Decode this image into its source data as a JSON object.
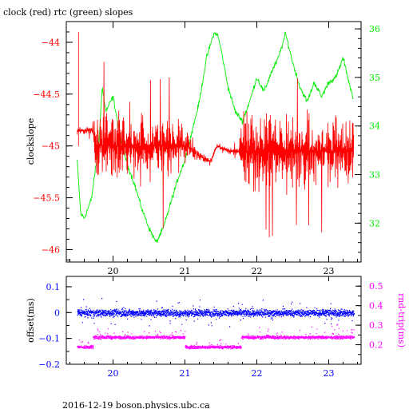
{
  "title": "clock (red) rtc (green) slopes",
  "footer": "2016-12-19 boson.physics.ubc.ca",
  "colors": {
    "red": "#ff0000",
    "green": "#00ee00",
    "blue": "#0000ff",
    "magenta": "#ff00ff",
    "axis": "#000000"
  },
  "chart_data": [
    {
      "type": "line",
      "xlim": [
        19.35,
        23.45
      ],
      "x_ticks": [
        "20",
        "21",
        "22",
        "23"
      ],
      "ylabel": "clockslope",
      "ylim": [
        -46.12,
        -43.8
      ],
      "y_ticks": [
        "-44",
        "-44.5",
        "-45",
        "-45.5",
        "-46"
      ],
      "y2lim": [
        31.2,
        36.15
      ],
      "y2_ticks": [
        "32",
        "33",
        "34",
        "35",
        "36"
      ],
      "series": [
        {
          "axis": "left",
          "color": "#ff0000",
          "noisy": true,
          "x": [
            19.5,
            19.6,
            19.72,
            19.75,
            20.0,
            20.3,
            20.6,
            20.9,
            21.05,
            21.2,
            21.35,
            21.45,
            21.6,
            21.75,
            21.8,
            22.0,
            22.3,
            22.6,
            22.9,
            23.1,
            23.35
          ],
          "y": [
            -44.85,
            -44.85,
            -44.85,
            -45.0,
            -45.0,
            -45.0,
            -45.0,
            -45.0,
            -45.0,
            -45.1,
            -45.15,
            -45.0,
            -45.05,
            -45.05,
            -45.05,
            -45.05,
            -45.05,
            -45.05,
            -45.05,
            -45.05,
            -45.05
          ],
          "noise": [
            0.05,
            0.05,
            0.05,
            0.5,
            0.5,
            0.5,
            0.45,
            0.45,
            0.2,
            0.05,
            0.05,
            0.05,
            0.05,
            0.05,
            0.5,
            0.55,
            0.5,
            0.5,
            0.45,
            0.45,
            0.45
          ]
        },
        {
          "axis": "right",
          "color": "#00ee00",
          "noisy": false,
          "x": [
            19.5,
            19.55,
            19.6,
            19.7,
            19.8,
            19.85,
            19.9,
            20.0,
            20.1,
            20.2,
            20.3,
            20.4,
            20.5,
            20.6,
            20.7,
            20.8,
            20.9,
            21.0,
            21.1,
            21.2,
            21.3,
            21.4,
            21.45,
            21.5,
            21.6,
            21.7,
            21.8,
            21.9,
            22.0,
            22.1,
            22.2,
            22.3,
            22.4,
            22.5,
            22.6,
            22.7,
            22.8,
            22.9,
            23.0,
            23.1,
            23.2,
            23.3,
            23.35
          ],
          "y": [
            33.3,
            32.2,
            32.1,
            32.5,
            33.6,
            34.8,
            34.3,
            34.6,
            33.8,
            33.2,
            32.8,
            32.3,
            31.9,
            31.6,
            31.9,
            32.4,
            32.9,
            33.3,
            33.9,
            34.5,
            35.4,
            35.9,
            35.9,
            35.6,
            34.8,
            34.3,
            34.1,
            34.5,
            35.0,
            34.7,
            35.1,
            35.4,
            35.9,
            35.3,
            34.8,
            34.5,
            34.9,
            34.6,
            34.9,
            35.0,
            35.4,
            34.8,
            34.5
          ]
        }
      ]
    },
    {
      "type": "scatter",
      "xlim": [
        19.35,
        23.45
      ],
      "x_ticks": [
        "20",
        "21",
        "22",
        "23"
      ],
      "ylabel": "offset(ms)",
      "ylim": [
        -0.2,
        0.14
      ],
      "y_ticks": [
        "0.1",
        "0",
        "-0.1",
        "-0.2"
      ],
      "y2label": "rnd-trip(ms)",
      "y2lim": [
        0.1,
        0.55
      ],
      "y2_ticks": [
        "0.2",
        "0.3",
        "0.4",
        "0.5"
      ],
      "series": [
        {
          "axis": "left",
          "color": "#0000ff",
          "x": [
            19.5,
            23.35
          ],
          "y": [
            0.0,
            0.0
          ],
          "spread": 0.02,
          "outlier": 0.08
        },
        {
          "axis": "right",
          "color": "#ff00ff",
          "segments": [
            {
              "x": [
                19.5,
                19.72
              ],
              "y": 0.19
            },
            {
              "x": [
                19.72,
                21.0
              ],
              "y": 0.24
            },
            {
              "x": [
                21.0,
                21.78
              ],
              "y": 0.19
            },
            {
              "x": [
                21.78,
                23.35
              ],
              "y": 0.24
            }
          ],
          "spread": 0.012,
          "outlier": 0.07
        }
      ]
    }
  ]
}
